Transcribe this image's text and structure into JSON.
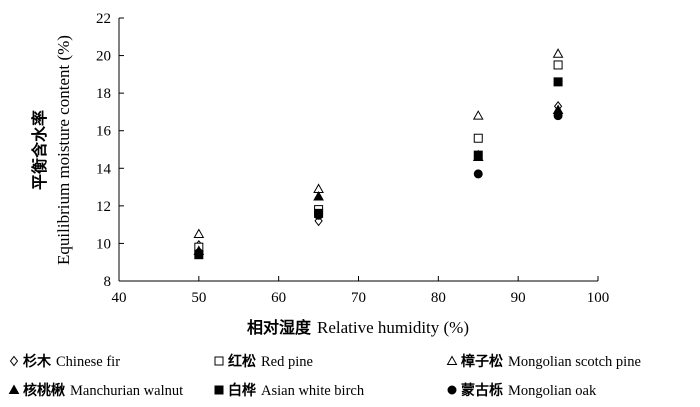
{
  "chart_data": {
    "type": "scatter",
    "title": "",
    "xlabel": {
      "cn": "相对湿度",
      "en": "Relative humidity (%)"
    },
    "ylabel": {
      "cn": "平衡含水率",
      "en": "Equilibrium moisture content (%)"
    },
    "xlim": [
      40,
      100
    ],
    "ylim": [
      8,
      22
    ],
    "xticks": [
      40,
      50,
      60,
      70,
      80,
      90,
      100
    ],
    "yticks": [
      8,
      10,
      12,
      14,
      16,
      18,
      20,
      22
    ],
    "grid": false,
    "legend_position": "bottom",
    "series": [
      {
        "name": "杉木 Chinese fir",
        "cn": "杉木",
        "en": "Chinese fir",
        "marker": "open-diamond",
        "points": [
          [
            50,
            9.9
          ],
          [
            65,
            11.2
          ],
          [
            85,
            14.7
          ],
          [
            95,
            17.3
          ]
        ]
      },
      {
        "name": "红松 Red pine",
        "cn": "红松",
        "en": "Red pine",
        "marker": "open-square",
        "points": [
          [
            50,
            9.8
          ],
          [
            65,
            11.8
          ],
          [
            85,
            15.6
          ],
          [
            95,
            19.5
          ]
        ]
      },
      {
        "name": "樟子松 Mongolian scotch pine",
        "cn": "樟子松",
        "en": "Mongolian scotch pine",
        "marker": "open-triangle",
        "points": [
          [
            50,
            10.5
          ],
          [
            65,
            12.9
          ],
          [
            85,
            16.8
          ],
          [
            95,
            20.1
          ]
        ]
      },
      {
        "name": "核桃楸 Manchurian walnut",
        "cn": "核桃楸",
        "en": "Manchurian walnut",
        "marker": "filled-triangle",
        "points": [
          [
            50,
            9.6
          ],
          [
            65,
            12.5
          ],
          [
            85,
            14.6
          ],
          [
            95,
            17.1
          ]
        ]
      },
      {
        "name": "白桦 Asian white birch",
        "cn": "白桦",
        "en": "Asian white birch",
        "marker": "filled-square",
        "points": [
          [
            50,
            9.4
          ],
          [
            65,
            11.6
          ],
          [
            85,
            14.7
          ],
          [
            95,
            18.6
          ]
        ]
      },
      {
        "name": "蒙古栎 Mongolian oak",
        "cn": "蒙古栎",
        "en": "Mongolian oak",
        "marker": "filled-circle",
        "points": [
          [
            50,
            9.5
          ],
          [
            65,
            11.5
          ],
          [
            85,
            13.7
          ],
          [
            95,
            16.8
          ]
        ]
      }
    ]
  }
}
